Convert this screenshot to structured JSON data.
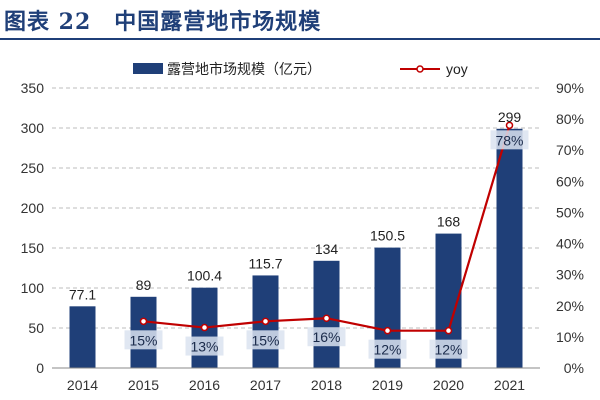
{
  "header": {
    "title": "图表 22　中国露营地市场规模"
  },
  "colors": {
    "bar": "#1f3f78",
    "line": "#c00000",
    "pct_box": "#dbe3f0",
    "grid": "#bdbdbd",
    "title": "#1f3f78"
  },
  "chart_data": {
    "type": "bar",
    "categories": [
      "2014",
      "2015",
      "2016",
      "2017",
      "2018",
      "2019",
      "2020",
      "2021"
    ],
    "series": [
      {
        "name": "露营地市场规模（亿元）",
        "type": "bar",
        "axis": "left",
        "values": [
          77.1,
          89,
          100.4,
          115.7,
          134,
          150.5,
          168,
          299
        ],
        "labels": [
          "77.1",
          "89",
          "100.4",
          "115.7",
          "134",
          "150.5",
          "168",
          "299"
        ]
      },
      {
        "name": "yoy",
        "type": "line",
        "axis": "right",
        "values": [
          null,
          15,
          13,
          15,
          16,
          12,
          12,
          78
        ],
        "labels": [
          "",
          "15%",
          "13%",
          "15%",
          "16%",
          "12%",
          "12%",
          "78%"
        ]
      }
    ],
    "y_left": {
      "min": 0,
      "max": 350,
      "ticks": [
        "0",
        "50",
        "100",
        "150",
        "200",
        "250",
        "300",
        "350"
      ]
    },
    "y_right": {
      "min": 0,
      "max": 90,
      "ticks": [
        "0%",
        "10%",
        "20%",
        "30%",
        "40%",
        "50%",
        "60%",
        "70%",
        "80%",
        "90%"
      ]
    },
    "grid": "horizontal-dashed",
    "legend": "top"
  }
}
